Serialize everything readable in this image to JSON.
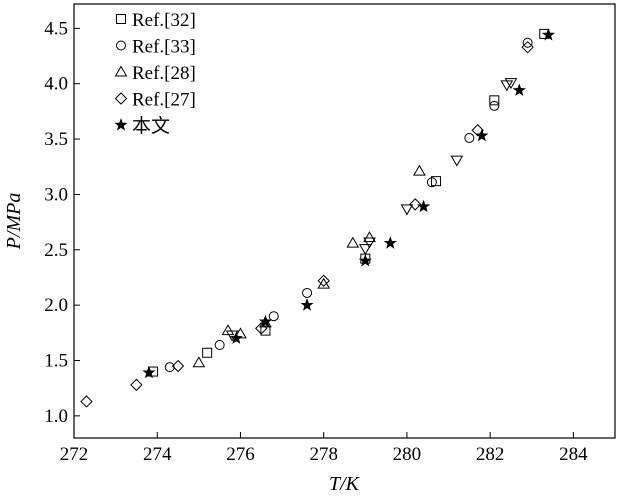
{
  "chart_data": {
    "type": "scatter",
    "title": "",
    "xlabel": "T/K",
    "ylabel": "P/MPa",
    "xlim": [
      272,
      285
    ],
    "ylim": [
      0.8,
      4.72
    ],
    "xticks": [
      272,
      274,
      276,
      278,
      280,
      282,
      284
    ],
    "xtick_labels": [
      "272",
      "274",
      "276",
      "278",
      "280",
      "282",
      "284"
    ],
    "yticks": [
      1.0,
      1.5,
      2.0,
      2.5,
      3.0,
      3.5,
      4.0,
      4.5
    ],
    "ytick_labels": [
      "1.0",
      "1.5",
      "2.0",
      "2.5",
      "3.0",
      "3.5",
      "4.0",
      "4.5"
    ],
    "grid": false,
    "legend_position": "top-left",
    "series": [
      {
        "name": "Ref.[32]",
        "marker": "square",
        "points": [
          [
            273.9,
            1.4
          ],
          [
            275.2,
            1.57
          ],
          [
            276.6,
            1.77
          ],
          [
            279.0,
            2.42
          ],
          [
            280.7,
            3.12
          ],
          [
            282.1,
            3.85
          ],
          [
            283.3,
            4.45
          ]
        ]
      },
      {
        "name": "Ref.[33]",
        "marker": "circle",
        "points": [
          [
            274.3,
            1.44
          ],
          [
            275.5,
            1.64
          ],
          [
            276.8,
            1.9
          ],
          [
            277.6,
            2.11
          ],
          [
            280.6,
            3.11
          ],
          [
            281.5,
            3.51
          ],
          [
            282.1,
            3.8
          ],
          [
            282.9,
            4.37
          ]
        ]
      },
      {
        "name": "Ref.[28]",
        "marker": "triangle-up",
        "points": [
          [
            275.0,
            1.48
          ],
          [
            275.7,
            1.77
          ],
          [
            276.0,
            1.74
          ],
          [
            276.6,
            1.84
          ],
          [
            278.0,
            2.19
          ],
          [
            278.7,
            2.56
          ],
          [
            279.1,
            2.61
          ],
          [
            280.3,
            3.21
          ]
        ]
      },
      {
        "name": "Ref.[27]",
        "marker": "diamond",
        "points": [
          [
            272.3,
            1.13
          ],
          [
            273.5,
            1.28
          ],
          [
            274.5,
            1.45
          ],
          [
            276.5,
            1.79
          ],
          [
            278.0,
            2.22
          ],
          [
            280.2,
            2.91
          ],
          [
            281.7,
            3.58
          ],
          [
            282.9,
            4.33
          ]
        ]
      },
      {
        "name": "本文",
        "marker": "star",
        "points": [
          [
            273.8,
            1.39
          ],
          [
            275.9,
            1.7
          ],
          [
            276.6,
            1.85
          ],
          [
            277.6,
            2.0
          ],
          [
            279.0,
            2.4
          ],
          [
            279.6,
            2.56
          ],
          [
            280.4,
            2.89
          ],
          [
            281.8,
            3.53
          ],
          [
            282.7,
            3.94
          ],
          [
            283.4,
            4.44
          ]
        ]
      },
      {
        "name": "",
        "marker": "triangle-down",
        "points": [
          [
            275.8,
            1.73
          ],
          [
            279.0,
            2.51
          ],
          [
            279.1,
            2.57
          ],
          [
            280.0,
            2.87
          ],
          [
            281.2,
            3.31
          ],
          [
            282.4,
            3.99
          ],
          [
            282.5,
            4.01
          ]
        ]
      }
    ]
  }
}
